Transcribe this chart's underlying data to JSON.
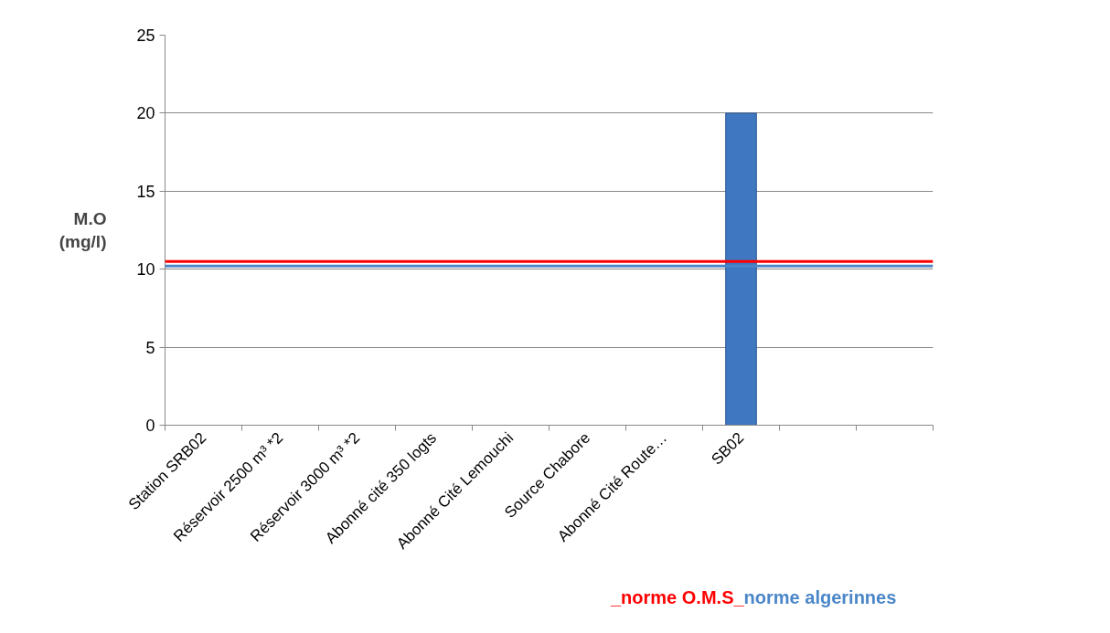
{
  "chart_data": {
    "type": "bar",
    "ylabel": "M.O\n(mg/l)",
    "categories": [
      "Station SRB02",
      "Réservoir 2500 m³ *2",
      "Réservoir 3000 m³ *2",
      "Abonné cité 350 logts",
      "Abonné Cité Lemouchi",
      "Source Chabore",
      "Abonné Cité Route…",
      "SB02",
      null,
      null
    ],
    "values": [
      null,
      null,
      null,
      null,
      null,
      null,
      null,
      20,
      null,
      null
    ],
    "color": "#3f77c0",
    "ylim": [
      0,
      25
    ],
    "yticks": [
      0,
      5,
      10,
      15,
      20,
      25
    ],
    "grid": "y",
    "ref_lines": [
      {
        "axis": "y",
        "value": 10.5,
        "label": "_norme O.M.S_",
        "color": "#ff0000"
      },
      {
        "axis": "y",
        "value": 10.2,
        "label": "norme algerinnes",
        "color": "#4a86c8"
      }
    ]
  }
}
